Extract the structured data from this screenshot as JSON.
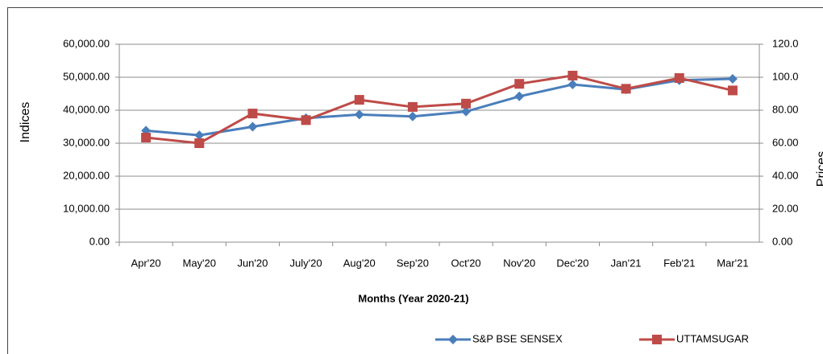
{
  "chart_data": {
    "type": "line",
    "x_label": "Months (Year 2020-21)",
    "y_label": "Indices",
    "y2_label": "Prices",
    "categories": [
      "Apr'20",
      "May'20",
      "Jun'20",
      "July'20",
      "Aug'20",
      "Sep'20",
      "Oct'20",
      "Nov'20",
      "Dec'20",
      "Jan'21",
      "Feb'21",
      "Mar'21"
    ],
    "series": [
      {
        "name": "S&P BSE SENSEX",
        "color": "#4a7ebb",
        "marker": "diamond",
        "values": [
          33800,
          32400,
          35000,
          37600,
          38700,
          38100,
          39600,
          44200,
          47800,
          46300,
          49100,
          49500
        ]
      },
      {
        "name": "UTTAMSUGAR",
        "color": "#be4b48",
        "marker": "square",
        "axis": "y2",
        "values": [
          63.4,
          60,
          78,
          74,
          86.3,
          82,
          84,
          96,
          101,
          93,
          99.5,
          92
        ]
      }
    ],
    "ylim": [
      0,
      60000
    ],
    "yticks": [
      {
        "value": 0,
        "label": "0.00"
      },
      {
        "value": 10000,
        "label": "10,000.00"
      },
      {
        "value": 20000,
        "label": "20,000.00"
      },
      {
        "value": 30000,
        "label": "30,000.00"
      },
      {
        "value": 40000,
        "label": "40,000.00"
      },
      {
        "value": 50000,
        "label": "50,000.00"
      },
      {
        "value": 60000,
        "label": "60,000.00"
      }
    ],
    "y2lim": [
      0,
      120
    ],
    "y2ticks": [
      {
        "value": 0,
        "label": "0.00"
      },
      {
        "value": 20,
        "label": "20.00"
      },
      {
        "value": 40,
        "label": "40.00"
      },
      {
        "value": 60,
        "label": "60.00"
      },
      {
        "value": 80,
        "label": "80.00"
      },
      {
        "value": 100,
        "label": "100.0"
      },
      {
        "value": 120,
        "label": "120.0"
      }
    ],
    "grid": true,
    "legend": "bottom"
  }
}
